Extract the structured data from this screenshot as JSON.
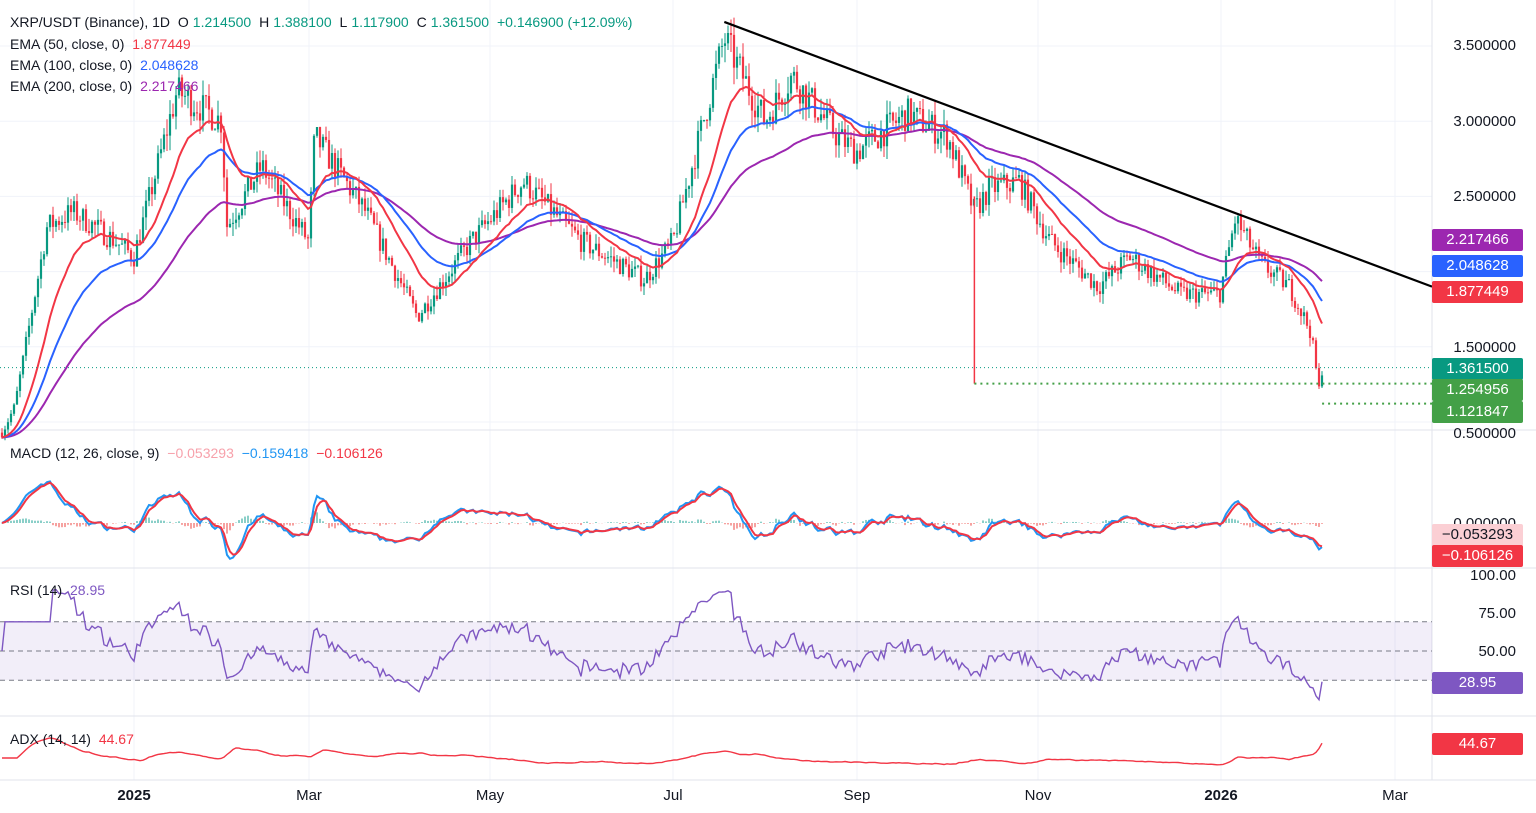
{
  "header": {
    "symbol": "XRP/USDT (Binance), 1D",
    "o_label": "O",
    "o": "1.214500",
    "h_label": "H",
    "h": "1.388100",
    "l_label": "L",
    "l": "1.117900",
    "c_label": "C",
    "c": "1.361500",
    "change": "+0.146900 (+12.09%)"
  },
  "indicators": {
    "ema50": {
      "label": "EMA (50, close, 0)",
      "value": "1.877449",
      "color": "#f23645"
    },
    "ema100": {
      "label": "EMA (100, close, 0)",
      "value": "2.048628",
      "color": "#2962ff"
    },
    "ema200": {
      "label": "EMA (200, close, 0)",
      "value": "2.217466",
      "color": "#9c27b0"
    },
    "macd": {
      "label": "MACD (12, 26, close, 9)",
      "hist": "−0.053293",
      "macd": "−0.159418",
      "signal": "−0.106126"
    },
    "rsi": {
      "label": "RSI (14)",
      "value": "28.95"
    },
    "adx": {
      "label": "ADX (14, 14)",
      "value": "44.67"
    }
  },
  "price_tags": {
    "ema200": "2.217466",
    "ema100": "2.048628",
    "ema50": "1.877449",
    "close": "1.361500",
    "level1": "1.254956",
    "level2": "1.121847"
  },
  "pane_tags": {
    "macd_hist": "−0.053293",
    "macd_signal": "−0.106126",
    "rsi": "28.95",
    "adx": "44.67"
  },
  "price_axis": [
    "3.500000",
    "3.000000",
    "2.500000",
    "2.000000",
    "1.500000",
    "1.000000",
    "0.500000"
  ],
  "macd_axis": [
    "0.000000"
  ],
  "rsi_axis": [
    "100.00",
    "75.00",
    "50.00",
    "25.00"
  ],
  "time_axis": [
    {
      "label": "2025",
      "bold": true
    },
    {
      "label": "Mar",
      "bold": false
    },
    {
      "label": "May",
      "bold": false
    },
    {
      "label": "Jul",
      "bold": false
    },
    {
      "label": "Sep",
      "bold": false
    },
    {
      "label": "Nov",
      "bold": false
    },
    {
      "label": "2026",
      "bold": true
    },
    {
      "label": "Mar",
      "bold": false
    }
  ],
  "colors": {
    "up": "#089981",
    "down": "#f23645",
    "ema50": "#f23645",
    "ema100": "#2962ff",
    "ema200": "#9c27b0",
    "macd": "#2196f3",
    "signal": "#f23645",
    "rsi": "#7e57c2",
    "adx": "#f23645",
    "trendline": "#000000"
  },
  "chart_data": {
    "type": "line",
    "title": "XRP/USDT (Binance), 1D",
    "x_unit": "month",
    "x_range": [
      "2024-11",
      "2026-03"
    ],
    "ylim": [
      1.0,
      3.7
    ],
    "price_path": [
      [
        "2024-11-05",
        0.52
      ],
      [
        "2024-11-20",
        1.1
      ],
      [
        "2024-12-01",
        2.3
      ],
      [
        "2024-12-10",
        2.4
      ],
      [
        "2024-12-25",
        2.2
      ],
      [
        "2025-01-01",
        2.1
      ],
      [
        "2025-01-16",
        3.2
      ],
      [
        "2025-02-01",
        3.0
      ],
      [
        "2025-02-03",
        2.3
      ],
      [
        "2025-02-15",
        2.7
      ],
      [
        "2025-03-01",
        2.2
      ],
      [
        "2025-03-03",
        2.9
      ],
      [
        "2025-03-20",
        2.4
      ],
      [
        "2025-04-07",
        1.7
      ],
      [
        "2025-04-25",
        2.2
      ],
      [
        "2025-05-12",
        2.6
      ],
      [
        "2025-06-01",
        2.2
      ],
      [
        "2025-06-22",
        1.95
      ],
      [
        "2025-07-01",
        2.2
      ],
      [
        "2025-07-18",
        3.55
      ],
      [
        "2025-08-01",
        3.0
      ],
      [
        "2025-08-10",
        3.3
      ],
      [
        "2025-08-25",
        2.9
      ],
      [
        "2025-09-01",
        2.8
      ],
      [
        "2025-09-18",
        3.05
      ],
      [
        "2025-10-01",
        2.9
      ],
      [
        "2025-10-10",
        2.4
      ],
      [
        "2025-10-15",
        2.55
      ],
      [
        "2025-10-25",
        2.6
      ],
      [
        "2025-11-05",
        2.2
      ],
      [
        "2025-11-21",
        1.9
      ],
      [
        "2025-12-01",
        2.1
      ],
      [
        "2025-12-18",
        1.85
      ],
      [
        "2025-12-31",
        1.85
      ],
      [
        "2026-01-06",
        2.35
      ],
      [
        "2026-01-15",
        2.05
      ],
      [
        "2026-01-25",
        1.9
      ],
      [
        "2026-02-02",
        1.6
      ],
      [
        "2026-02-05",
        1.2
      ],
      [
        "2026-02-06",
        1.36
      ]
    ],
    "ema50_last": 1.877449,
    "ema100_last": 2.048628,
    "ema200_last": 2.217466,
    "close": 1.3615,
    "high": 1.3881,
    "low": 1.1179,
    "support_levels": [
      1.254956,
      1.121847
    ],
    "trendline": [
      [
        "2025-07-18",
        3.66
      ],
      [
        "2026-03-01",
        1.9
      ]
    ],
    "rsi_levels": [
      70,
      50,
      30
    ],
    "rsi_last": 28.95,
    "adx_last": 44.67,
    "macd_last": -0.159418,
    "signal_last": -0.106126,
    "hist_last": -0.053293
  }
}
